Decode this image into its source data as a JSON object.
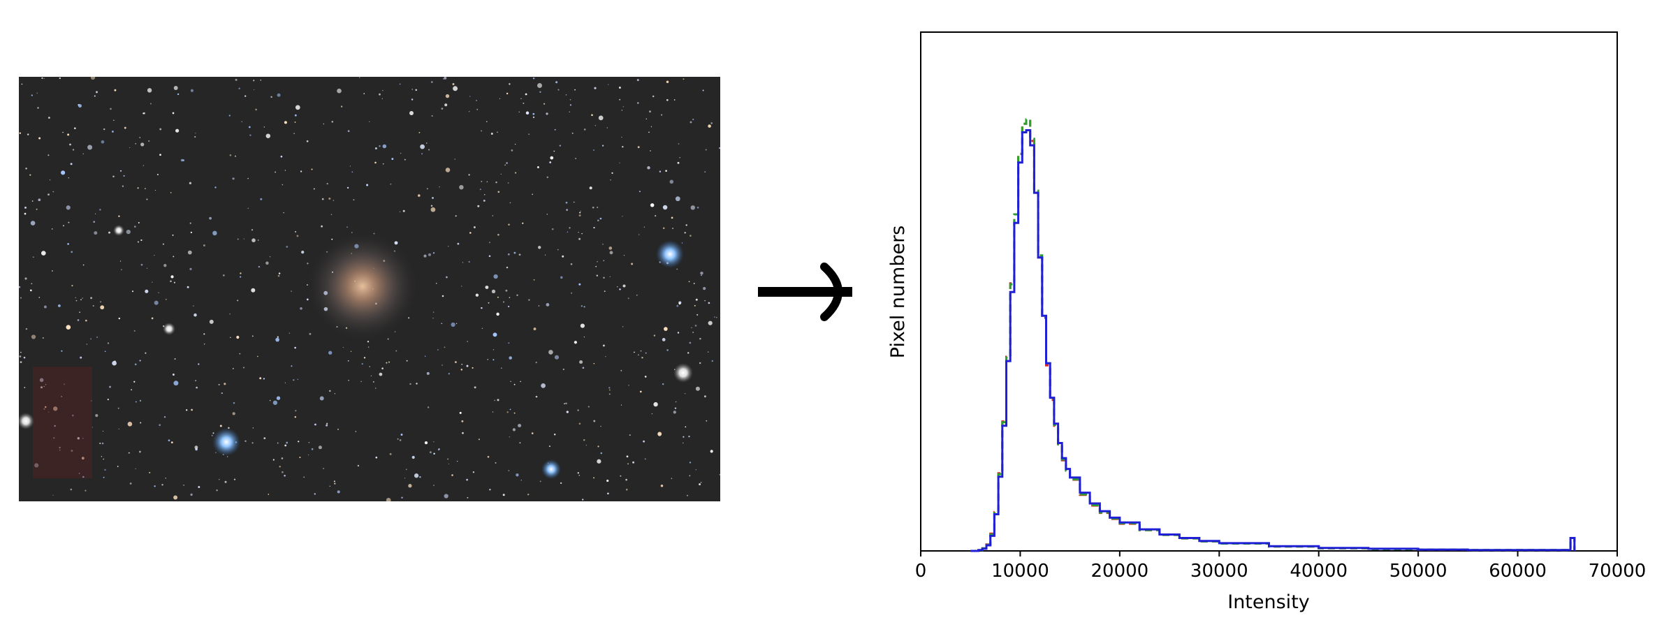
{
  "image_panel": {
    "description_icon": "galaxy-starfield-photo"
  },
  "arrow_icon": "right-arrow-icon",
  "chart_data": {
    "type": "line",
    "style": "step histogram",
    "xlabel": "Intensity",
    "ylabel": "Pixel numbers",
    "xlim": [
      0,
      70000
    ],
    "ylim": [
      0,
      1.0
    ],
    "y_ticks_shown": false,
    "x_ticks": [
      0,
      10000,
      20000,
      30000,
      40000,
      50000,
      60000,
      70000
    ],
    "x_tick_labels": [
      "0",
      "10000",
      "20000",
      "30000",
      "40000",
      "50000",
      "60000",
      "70000"
    ],
    "grid": false,
    "colors": {
      "red": "#d62728",
      "green": "#2ca02c",
      "blue": "#1f1fd6"
    },
    "series": [
      {
        "color": "red",
        "dashed": true,
        "x": [
          5000,
          5800,
          6200,
          6600,
          7000,
          7400,
          7800,
          8200,
          8600,
          9000,
          9400,
          9800,
          10200,
          10600,
          11000,
          11400,
          11800,
          12200,
          12600,
          13000,
          13400,
          13800,
          14200,
          14600,
          15000,
          16000,
          17000,
          18000,
          19000,
          20000,
          22000,
          24000,
          26000,
          28000,
          30000,
          35000,
          40000,
          45000,
          50000,
          55000,
          60000,
          64000,
          65300,
          65500,
          65700
        ],
        "y": [
          0,
          0.002,
          0.006,
          0.015,
          0.04,
          0.09,
          0.18,
          0.3,
          0.45,
          0.62,
          0.78,
          0.92,
          0.99,
          1.0,
          0.95,
          0.83,
          0.68,
          0.54,
          0.43,
          0.35,
          0.29,
          0.245,
          0.21,
          0.185,
          0.165,
          0.13,
          0.105,
          0.088,
          0.074,
          0.063,
          0.048,
          0.037,
          0.029,
          0.022,
          0.017,
          0.01,
          0.006,
          0.004,
          0.003,
          0.002,
          0.002,
          0.002,
          0.03,
          0.03,
          0.0
        ]
      },
      {
        "color": "green",
        "dashed": true,
        "x": [
          5000,
          5800,
          6200,
          6600,
          7000,
          7400,
          7800,
          8200,
          8600,
          9000,
          9400,
          9800,
          10200,
          10600,
          11000,
          11400,
          11800,
          12200,
          12600,
          13000,
          13400,
          13800,
          14200,
          14600,
          15000,
          16000,
          17000,
          18000,
          19000,
          20000,
          22000,
          24000,
          26000,
          28000,
          30000,
          35000,
          40000,
          45000,
          50000,
          55000,
          60000,
          64000,
          65300,
          65500,
          65700
        ],
        "y": [
          0,
          0.002,
          0.006,
          0.014,
          0.038,
          0.088,
          0.178,
          0.298,
          0.448,
          0.618,
          0.78,
          0.92,
          0.99,
          1.0,
          0.955,
          0.835,
          0.685,
          0.545,
          0.435,
          0.352,
          0.292,
          0.247,
          0.212,
          0.186,
          0.166,
          0.131,
          0.106,
          0.089,
          0.075,
          0.064,
          0.048,
          0.037,
          0.029,
          0.022,
          0.017,
          0.01,
          0.006,
          0.004,
          0.003,
          0.002,
          0.002,
          0.002,
          0.03,
          0.03,
          0.0
        ]
      },
      {
        "color": "blue",
        "dashed": false,
        "x": [
          5000,
          5800,
          6200,
          6600,
          7000,
          7400,
          7800,
          8200,
          8600,
          9000,
          9400,
          9800,
          10200,
          10600,
          11000,
          11400,
          11800,
          12200,
          12600,
          13000,
          13400,
          13800,
          14200,
          14600,
          15000,
          16000,
          17000,
          18000,
          19000,
          20000,
          22000,
          24000,
          26000,
          28000,
          30000,
          35000,
          40000,
          45000,
          50000,
          55000,
          60000,
          64000,
          65300,
          65500,
          65700
        ],
        "y": [
          0,
          0.002,
          0.005,
          0.013,
          0.035,
          0.085,
          0.172,
          0.29,
          0.44,
          0.6,
          0.76,
          0.9,
          0.97,
          0.975,
          0.94,
          0.83,
          0.68,
          0.545,
          0.435,
          0.355,
          0.295,
          0.25,
          0.215,
          0.19,
          0.17,
          0.135,
          0.11,
          0.092,
          0.077,
          0.066,
          0.05,
          0.038,
          0.03,
          0.023,
          0.018,
          0.011,
          0.007,
          0.005,
          0.003,
          0.002,
          0.002,
          0.002,
          0.03,
          0.03,
          0.0
        ]
      }
    ]
  }
}
